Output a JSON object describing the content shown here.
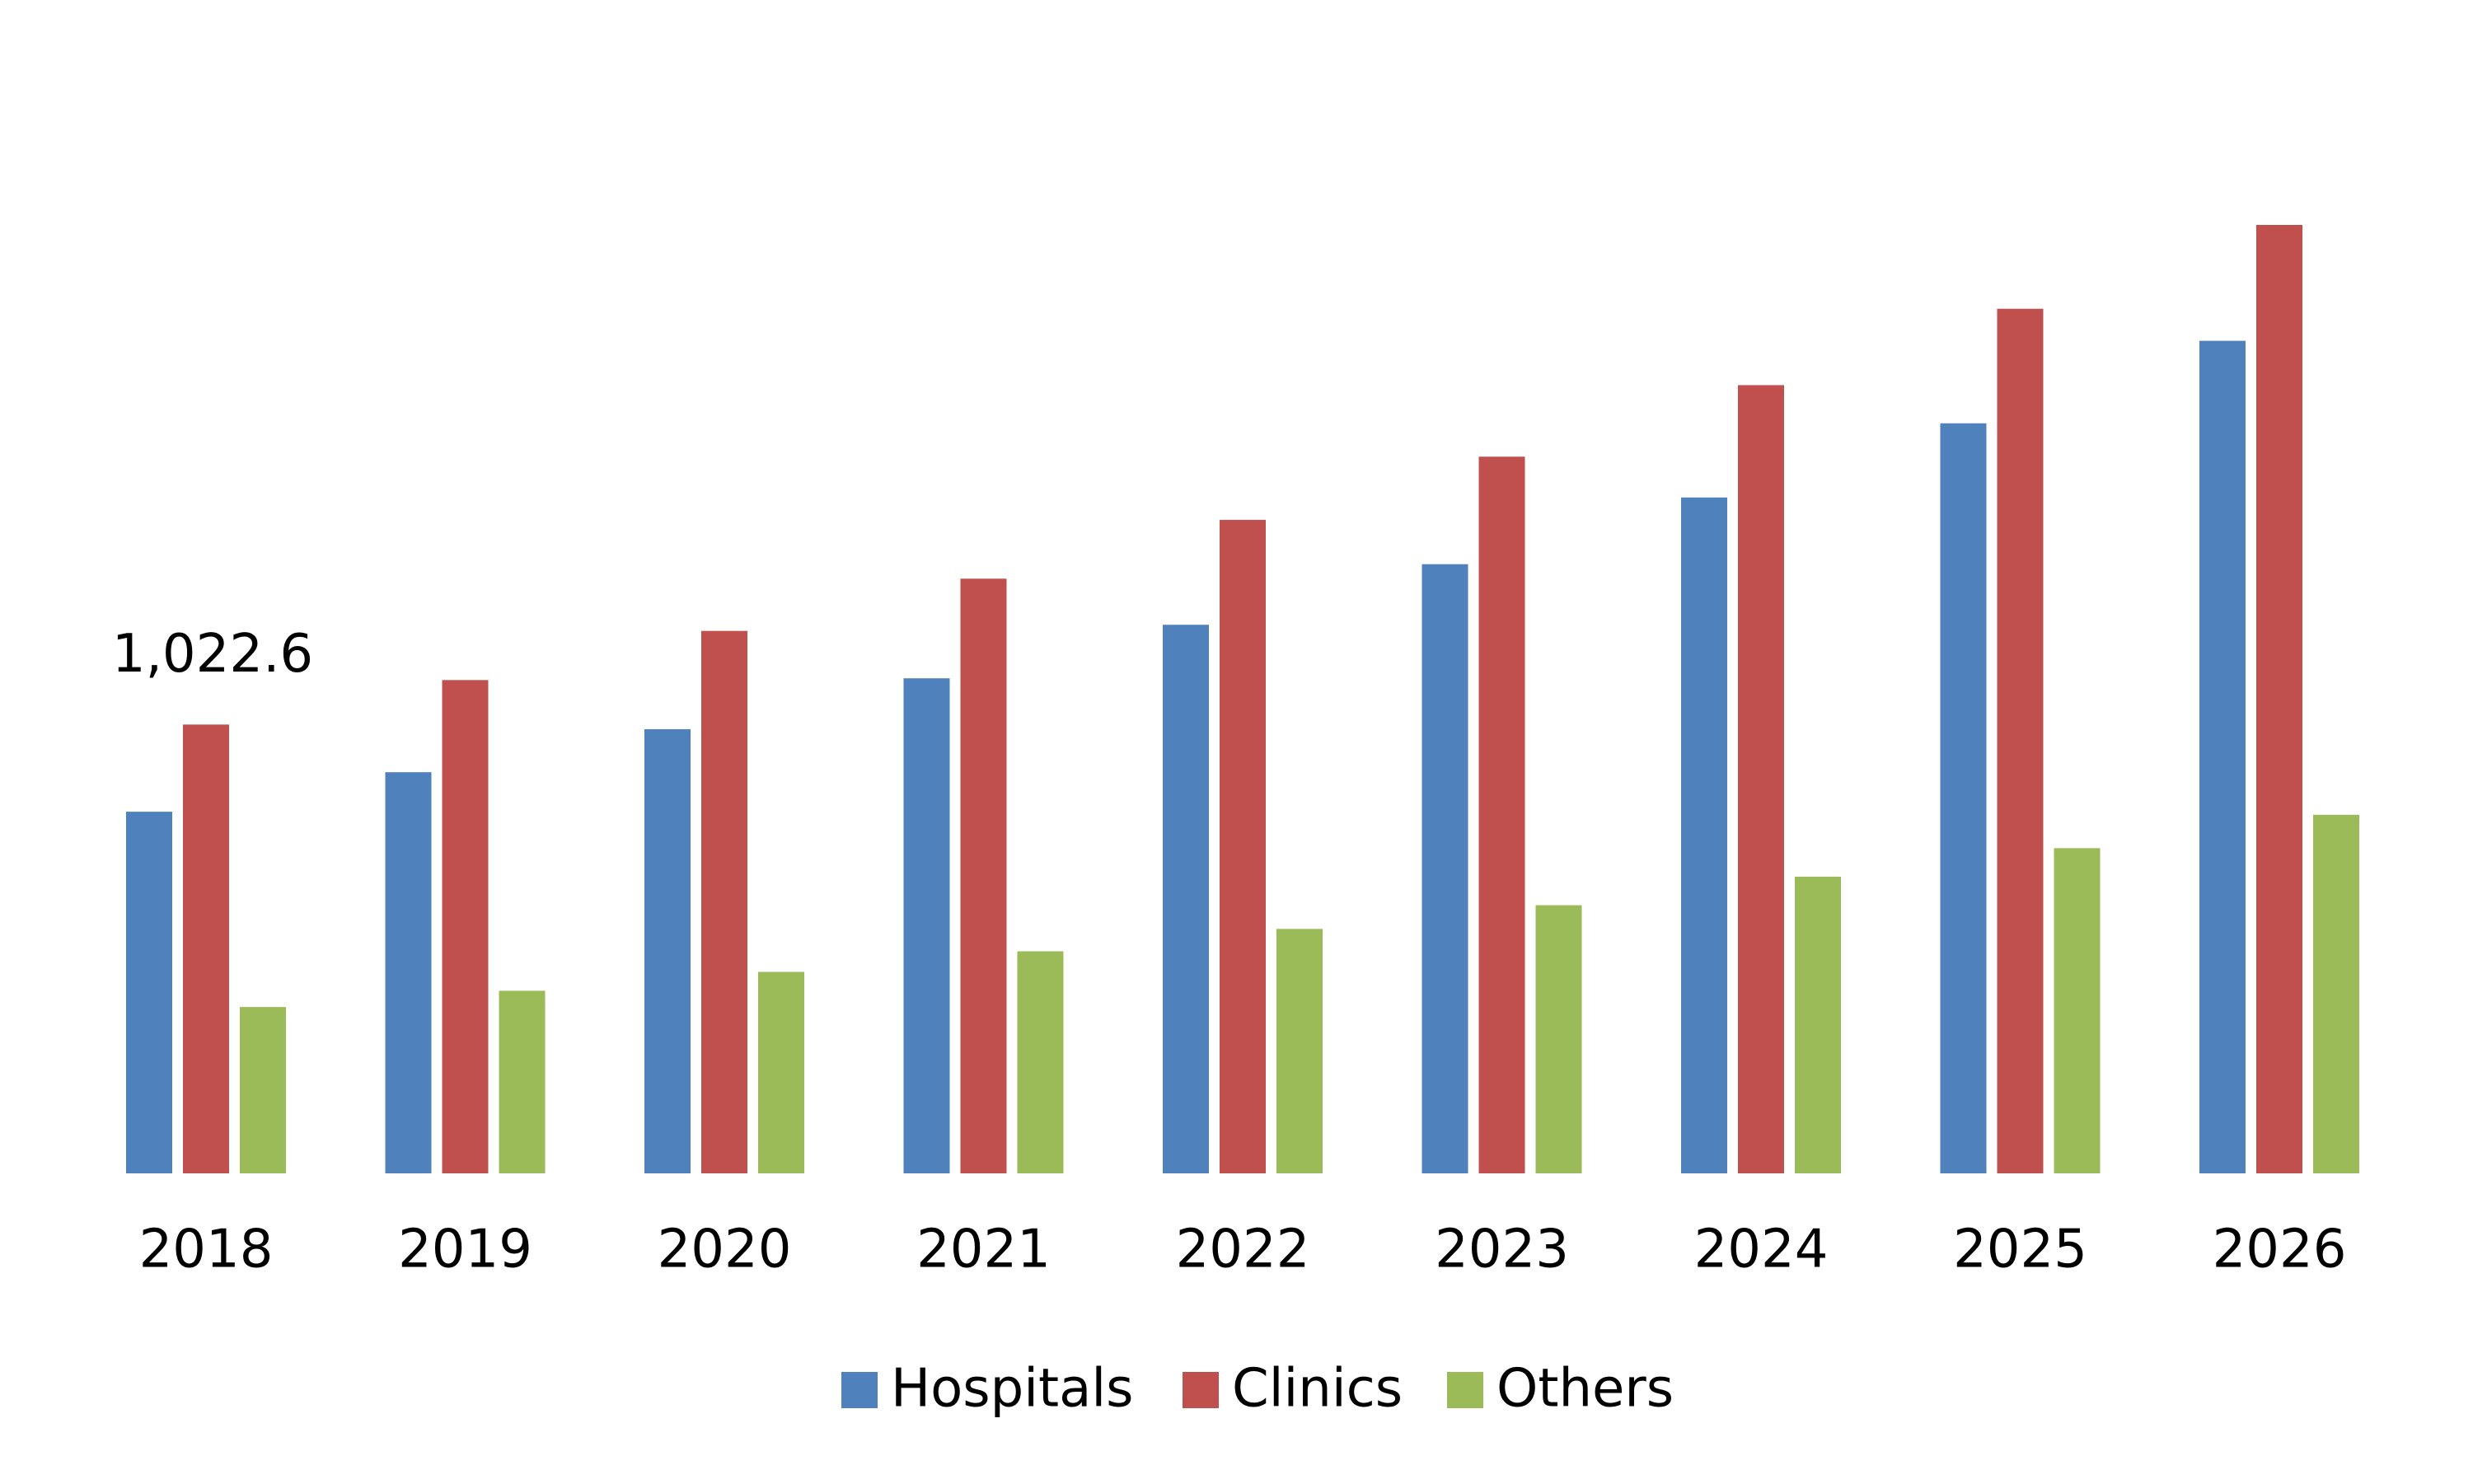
{
  "chart_data": {
    "type": "bar",
    "categories": [
      "2018",
      "2019",
      "2020",
      "2021",
      "2022",
      "2023",
      "2024",
      "2025",
      "2026"
    ],
    "series": [
      {
        "name": "Hospitals",
        "color": "#4f81bd",
        "values": [
          824,
          914,
          1012,
          1128,
          1250,
          1388,
          1540,
          1709,
          1897
        ]
      },
      {
        "name": "Clinics",
        "color": "#c0504d",
        "values": [
          1022.6,
          1124,
          1236,
          1355,
          1489,
          1633,
          1796,
          1970,
          2161
        ],
        "value_labels": [
          "1,022.6",
          null,
          null,
          null,
          null,
          null,
          null,
          null,
          null
        ]
      },
      {
        "name": "Others",
        "color": "#9bbb59",
        "values": [
          379,
          416,
          459,
          506,
          557,
          611,
          676,
          741,
          817
        ]
      }
    ],
    "legend": "bottom"
  }
}
